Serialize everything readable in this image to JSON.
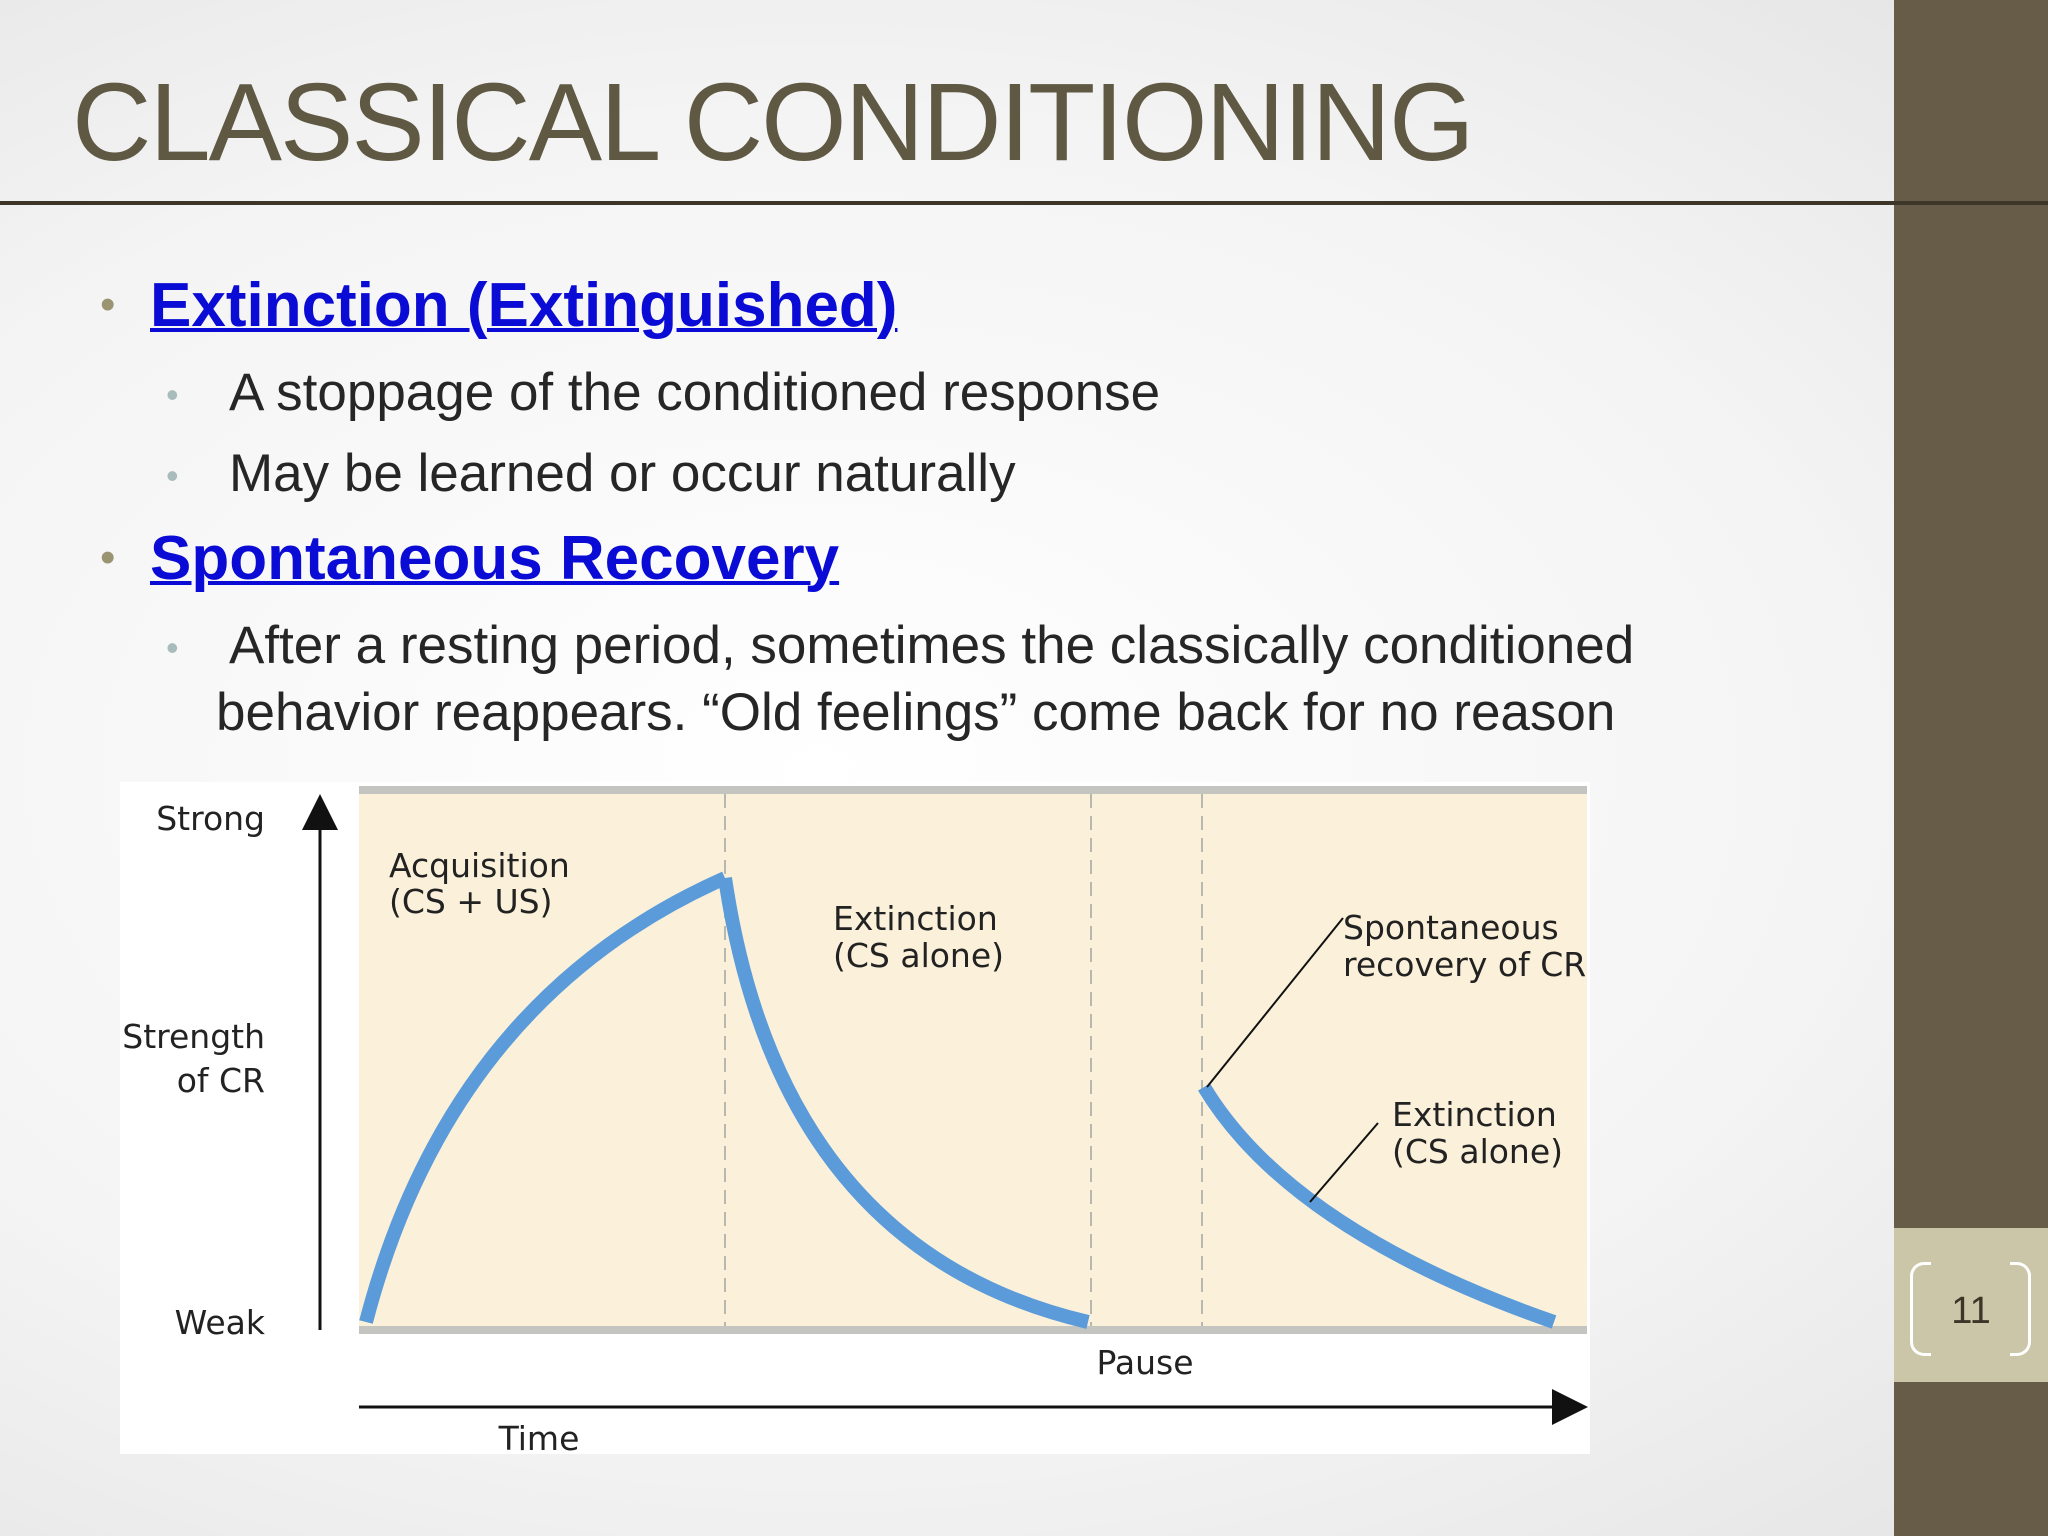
{
  "header": {
    "title": "CLASSICAL CONDITIONING"
  },
  "bullets": [
    {
      "text": "Extinction (Extinguished)",
      "subs": [
        [
          "A stoppage of the conditioned response"
        ],
        [
          "May be learned or occur naturally"
        ]
      ]
    },
    {
      "text": "Spontaneous Recovery",
      "subs": [
        [
          "After a resting period, sometimes the classically conditioned",
          "behavior reappears.  “Old feelings” come back for no reason"
        ]
      ]
    }
  ],
  "diagram": {
    "y_axis": {
      "top": "Strong",
      "middle": [
        "Strength",
        "of CR"
      ],
      "bottom": "Weak"
    },
    "x_axis": "Time",
    "pause": "Pause",
    "acquisition": [
      "Acquisition",
      "(CS + US)"
    ],
    "extinction": [
      "Extinction",
      "(CS alone)"
    ],
    "spontaneous_recovery": [
      "Spontaneous",
      "recovery of CR"
    ],
    "extinction_after": [
      "Extinction",
      "(CS alone)"
    ]
  },
  "page_number": "11"
}
